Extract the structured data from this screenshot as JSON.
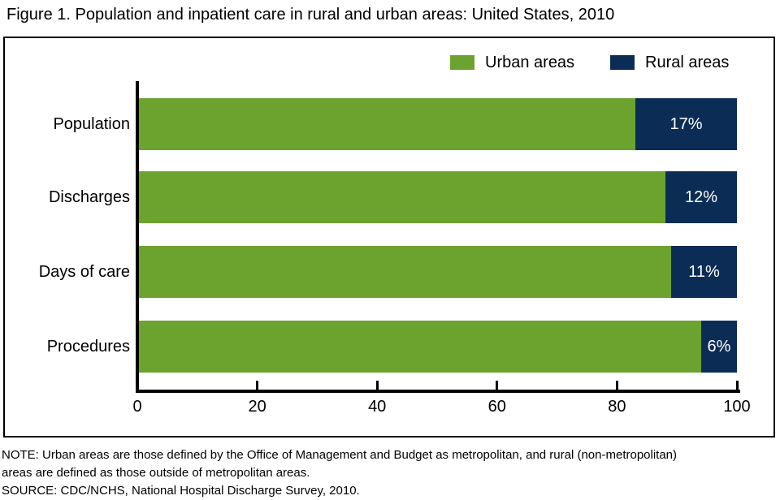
{
  "title": "Figure 1. Population and inpatient care in rural and urban areas: United States, 2010",
  "legend": {
    "urban_label": "Urban areas",
    "rural_label": "Rural areas"
  },
  "colors": {
    "urban": "#6CA22E",
    "rural": "#0B2D55",
    "axis": "#000000",
    "bar_label_text": "#FFFFFF"
  },
  "chart_data": {
    "type": "bar",
    "orientation": "horizontal",
    "stacked": true,
    "title": "Figure 1. Population and inpatient care in rural and urban areas: United States, 2010",
    "categories": [
      "Population",
      "Discharges",
      "Days of care",
      "Procedures"
    ],
    "series": [
      {
        "name": "Urban areas",
        "values": [
          83,
          88,
          89,
          94
        ]
      },
      {
        "name": "Rural areas",
        "values": [
          17,
          12,
          11,
          6
        ]
      }
    ],
    "bar_labels": [
      "17%",
      "12%",
      "11%",
      "6%"
    ],
    "x_ticks": [
      0,
      20,
      40,
      60,
      80,
      100
    ],
    "xlim": [
      0,
      100
    ],
    "xlabel": "",
    "ylabel": "",
    "grid": false,
    "legend_position": "top-right"
  },
  "notes": {
    "note_lines": [
      "NOTE: Urban areas are those defined by the Office of Management and Budget as metropolitan, and rural (non-metropolitan)",
      "areas are defined as those outside of metropolitan areas."
    ],
    "source": "SOURCE: CDC/NCHS, National Hospital Discharge Survey, 2010."
  }
}
